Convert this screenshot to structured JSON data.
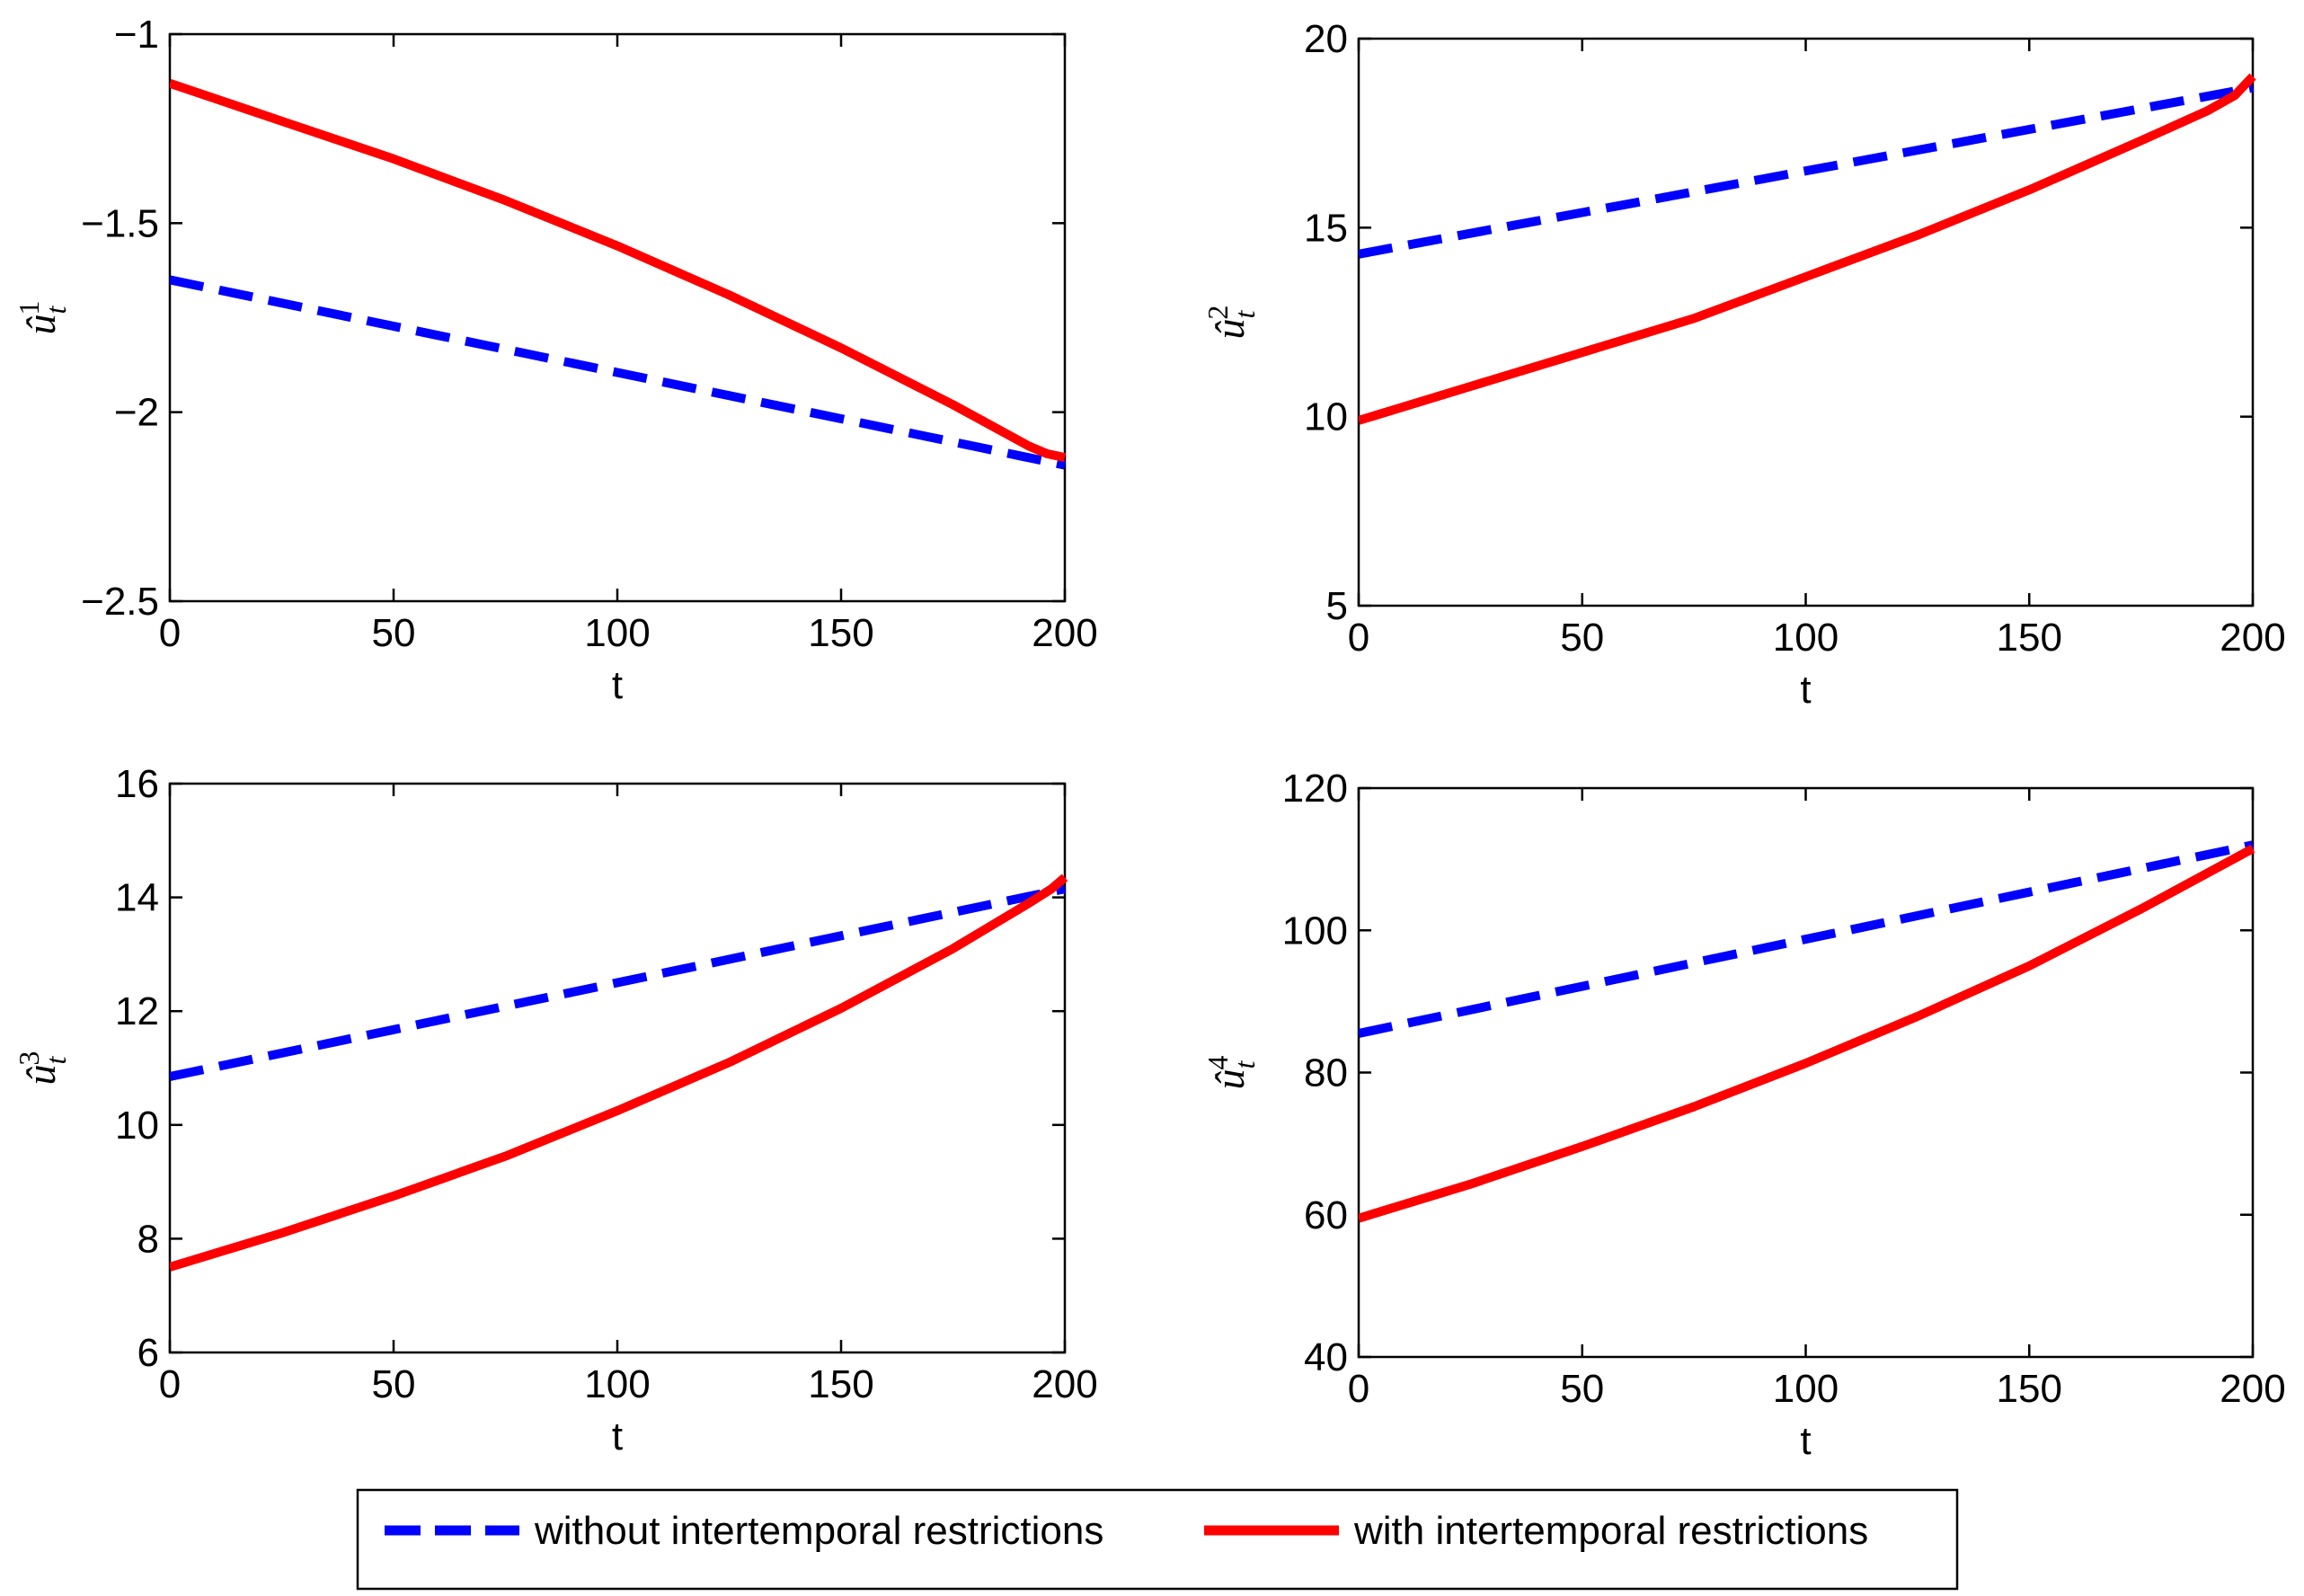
{
  "legend": {
    "entries": [
      {
        "label": "without intertemporal restrictions",
        "color": "#0000ff",
        "style": "dashed"
      },
      {
        "label": "with intertemporal restrictions",
        "color": "#ff0000",
        "style": "solid"
      }
    ]
  },
  "chart_data": [
    {
      "type": "line",
      "title": "",
      "xlabel": "t",
      "ylabel_symbol": "û",
      "ylabel_sub": "t",
      "ylabel_sup": "1",
      "xlim": [
        0,
        200
      ],
      "ylim": [
        -2.5,
        -1
      ],
      "xticks": [
        0,
        50,
        100,
        150,
        200
      ],
      "yticks": [
        -2.5,
        -2,
        -1.5,
        -1
      ],
      "ytick_labels": [
        "−2.5",
        "−2",
        "−1.5",
        "−1"
      ],
      "xtick_labels": [
        "0",
        "50",
        "100",
        "150",
        "200"
      ],
      "series": [
        {
          "name": "without intertemporal restrictions",
          "color": "#0000ff",
          "dashed": true,
          "x": [
            0,
            200
          ],
          "y": [
            -1.65,
            -2.14
          ]
        },
        {
          "name": "with intertemporal restrictions",
          "color": "#ff0000",
          "dashed": false,
          "x": [
            0,
            25,
            50,
            75,
            100,
            125,
            150,
            175,
            192,
            196,
            200
          ],
          "y": [
            -1.13,
            -1.23,
            -1.33,
            -1.44,
            -1.56,
            -1.69,
            -1.83,
            -1.98,
            -2.09,
            -2.11,
            -2.12
          ]
        }
      ]
    },
    {
      "type": "line",
      "title": "",
      "xlabel": "t",
      "ylabel_symbol": "û",
      "ylabel_sub": "t",
      "ylabel_sup": "2",
      "xlim": [
        0,
        200
      ],
      "ylim": [
        5,
        20
      ],
      "xticks": [
        0,
        50,
        100,
        150,
        200
      ],
      "yticks": [
        5,
        10,
        15,
        20
      ],
      "ytick_labels": [
        "5",
        "10",
        "15",
        "20"
      ],
      "xtick_labels": [
        "0",
        "50",
        "100",
        "150",
        "200"
      ],
      "series": [
        {
          "name": "without intertemporal restrictions",
          "color": "#0000ff",
          "dashed": true,
          "x": [
            0,
            200
          ],
          "y": [
            14.3,
            18.7
          ]
        },
        {
          "name": "with intertemporal restrictions",
          "color": "#ff0000",
          "dashed": false,
          "x": [
            0,
            25,
            50,
            75,
            100,
            125,
            150,
            175,
            190,
            196,
            200
          ],
          "y": [
            9.9,
            10.8,
            11.7,
            12.6,
            13.7,
            14.8,
            16.0,
            17.3,
            18.1,
            18.5,
            19.0
          ]
        }
      ]
    },
    {
      "type": "line",
      "title": "",
      "xlabel": "t",
      "ylabel_symbol": "û",
      "ylabel_sub": "t",
      "ylabel_sup": "3",
      "xlim": [
        0,
        200
      ],
      "ylim": [
        6,
        16
      ],
      "xticks": [
        0,
        50,
        100,
        150,
        200
      ],
      "yticks": [
        6,
        8,
        10,
        12,
        14,
        16
      ],
      "ytick_labels": [
        "6",
        "8",
        "10",
        "12",
        "14",
        "16"
      ],
      "xtick_labels": [
        "0",
        "50",
        "100",
        "150",
        "200"
      ],
      "series": [
        {
          "name": "without intertemporal restrictions",
          "color": "#0000ff",
          "dashed": true,
          "x": [
            0,
            200
          ],
          "y": [
            10.85,
            14.15
          ]
        },
        {
          "name": "with intertemporal restrictions",
          "color": "#ff0000",
          "dashed": false,
          "x": [
            0,
            25,
            50,
            75,
            100,
            125,
            150,
            175,
            192,
            197,
            200
          ],
          "y": [
            7.5,
            8.1,
            8.75,
            9.45,
            10.25,
            11.1,
            12.05,
            13.1,
            13.9,
            14.15,
            14.35
          ]
        }
      ]
    },
    {
      "type": "line",
      "title": "",
      "xlabel": "t",
      "ylabel_symbol": "û",
      "ylabel_sub": "t",
      "ylabel_sup": "4",
      "xlim": [
        0,
        200
      ],
      "ylim": [
        40,
        120
      ],
      "xticks": [
        0,
        50,
        100,
        150,
        200
      ],
      "yticks": [
        40,
        60,
        80,
        100,
        120
      ],
      "ytick_labels": [
        "40",
        "60",
        "80",
        "100",
        "120"
      ],
      "xtick_labels": [
        "0",
        "50",
        "100",
        "150",
        "200"
      ],
      "series": [
        {
          "name": "without intertemporal restrictions",
          "color": "#0000ff",
          "dashed": true,
          "x": [
            0,
            200
          ],
          "y": [
            85.5,
            112
          ]
        },
        {
          "name": "with intertemporal restrictions",
          "color": "#ff0000",
          "dashed": false,
          "x": [
            0,
            25,
            50,
            75,
            100,
            125,
            150,
            175,
            200
          ],
          "y": [
            59.5,
            64.3,
            69.6,
            75.2,
            81.3,
            87.9,
            95.0,
            103.0,
            111.5
          ]
        }
      ]
    }
  ]
}
